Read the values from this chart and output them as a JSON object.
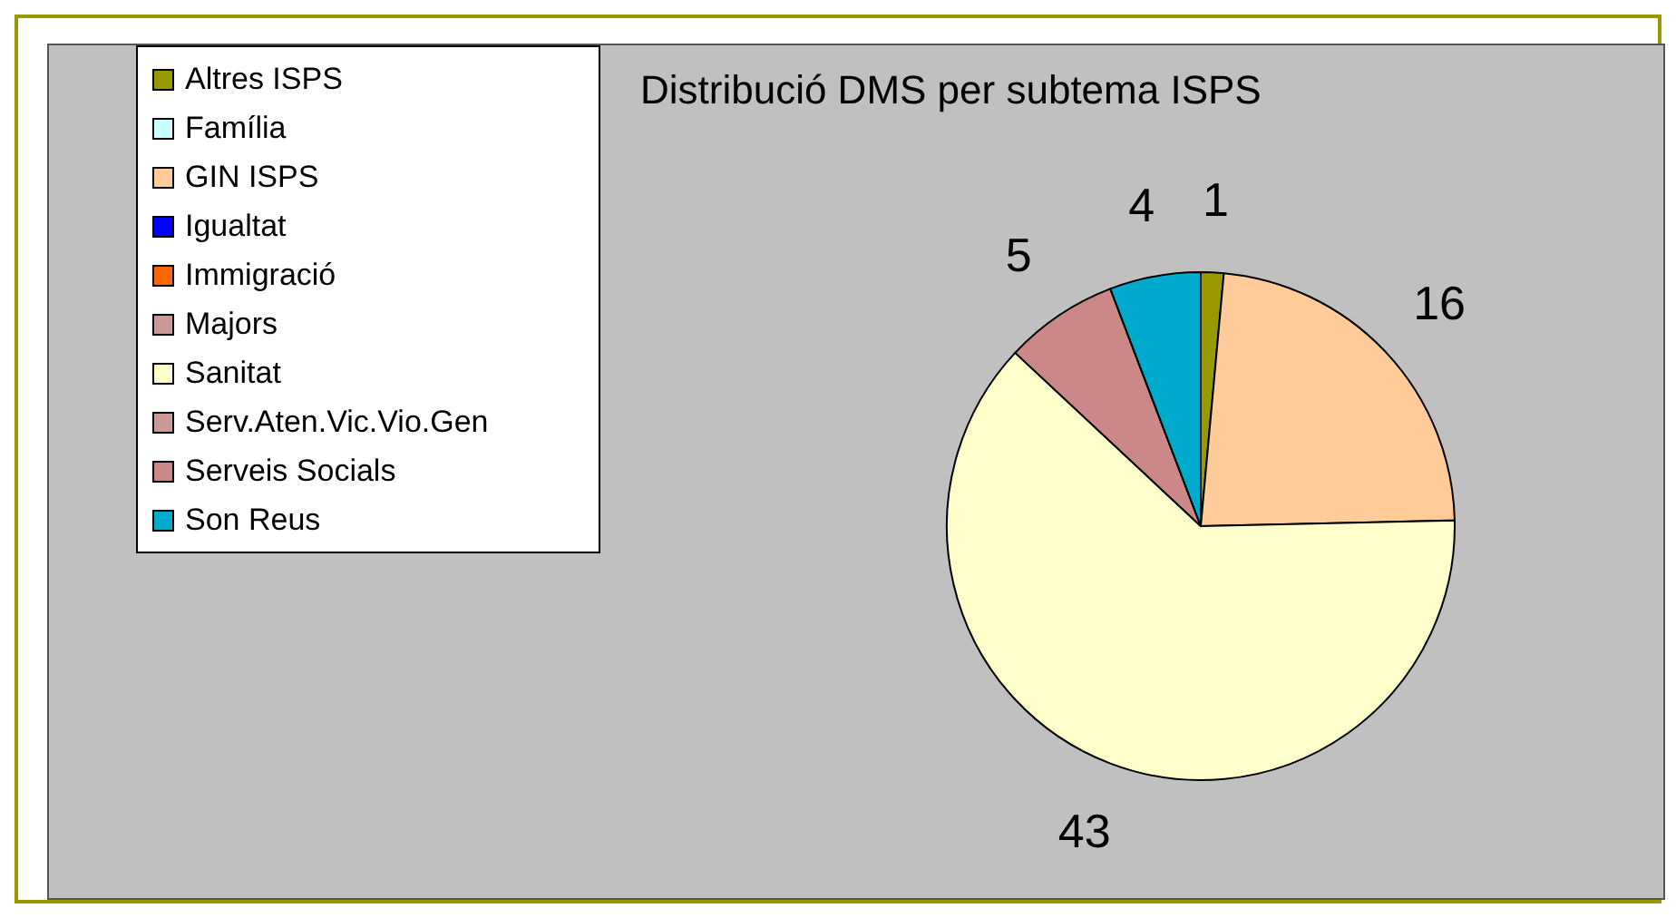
{
  "chart_data": {
    "type": "pie",
    "title": "Distribució DMS per subtema ISPS",
    "categories": [
      "Altres ISPS",
      "Família",
      "GIN ISPS",
      "Igualtat",
      "Immigració",
      "Majors",
      "Sanitat",
      "Serv.Aten.Vic.Vio.Gen",
      "Serveis Socials",
      "Son Reus"
    ],
    "values": [
      1,
      0,
      16,
      0,
      0,
      0,
      43,
      0,
      5,
      4
    ],
    "colors": [
      "#999900",
      "#ccffff",
      "#ffcc99",
      "#0000ff",
      "#ff6600",
      "#cc9999",
      "#ffffcc",
      "#cc9999",
      "#cc8888",
      "#00aacc"
    ],
    "value_labels": [
      "1",
      null,
      "16",
      null,
      null,
      null,
      "43",
      null,
      "5",
      "4"
    ],
    "legend": "top left"
  }
}
